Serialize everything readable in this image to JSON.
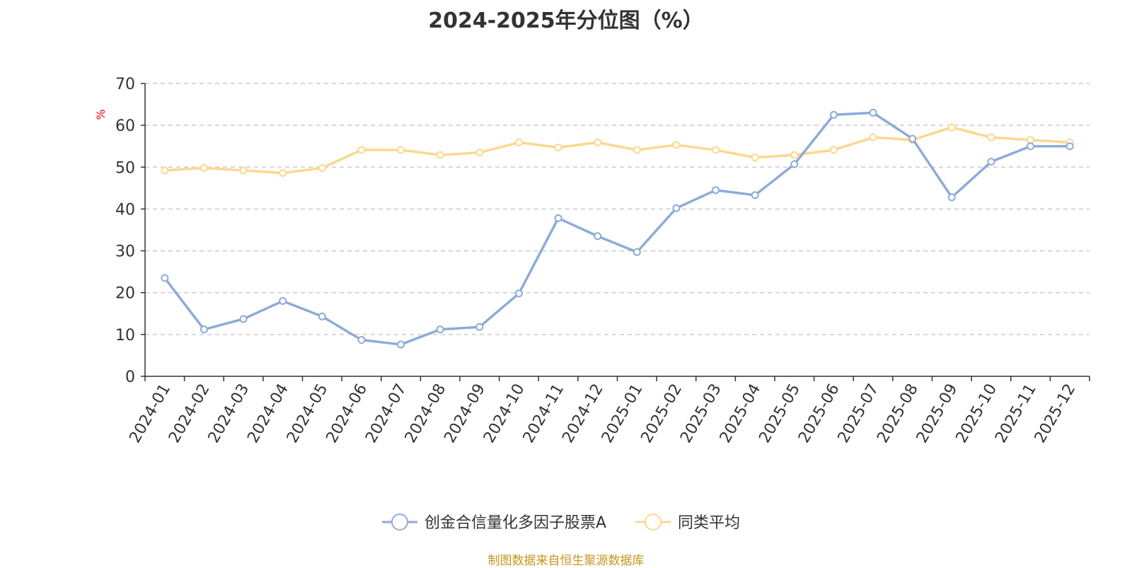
{
  "title": "2024-2025年分位图（%）",
  "source": "制图数据来自恒生聚源数据库",
  "chart_data": {
    "type": "line",
    "title": "2024-2025年分位图（%）",
    "ylabel": "%",
    "ylabel_color": "#ff0000",
    "ylim": [
      0,
      70
    ],
    "yticks": [
      0,
      10,
      20,
      30,
      40,
      50,
      60,
      70
    ],
    "grid": true,
    "legend_position": "bottom-center",
    "categories": [
      "2024-01",
      "2024-02",
      "2024-03",
      "2024-04",
      "2024-05",
      "2024-06",
      "2024-07",
      "2024-08",
      "2024-09",
      "2024-10",
      "2024-11",
      "2024-12",
      "2025-01",
      "2025-02",
      "2025-03",
      "2025-04",
      "2025-05",
      "2025-06",
      "2025-07",
      "2025-08",
      "2025-09",
      "2025-10",
      "2025-11",
      "2025-12"
    ],
    "series": [
      {
        "name": "创金合信量化多因子股票A",
        "color": "#8eabd8",
        "values": [
          23.5,
          11.2,
          13.7,
          18.0,
          14.3,
          8.7,
          7.6,
          11.2,
          11.8,
          19.8,
          37.8,
          33.5,
          29.7,
          40.2,
          44.5,
          43.3,
          50.7,
          62.5,
          63.0,
          56.8,
          42.8,
          51.3,
          55.0,
          55.0
        ]
      },
      {
        "name": "同类平均",
        "color": "#fbd88f",
        "values": [
          49.2,
          49.8,
          49.2,
          48.6,
          49.8,
          54.1,
          54.1,
          52.9,
          53.5,
          55.9,
          54.7,
          55.9,
          54.1,
          55.3,
          54.1,
          52.3,
          52.9,
          54.1,
          57.1,
          56.5,
          59.5,
          57.1,
          56.5,
          55.9
        ]
      }
    ]
  }
}
